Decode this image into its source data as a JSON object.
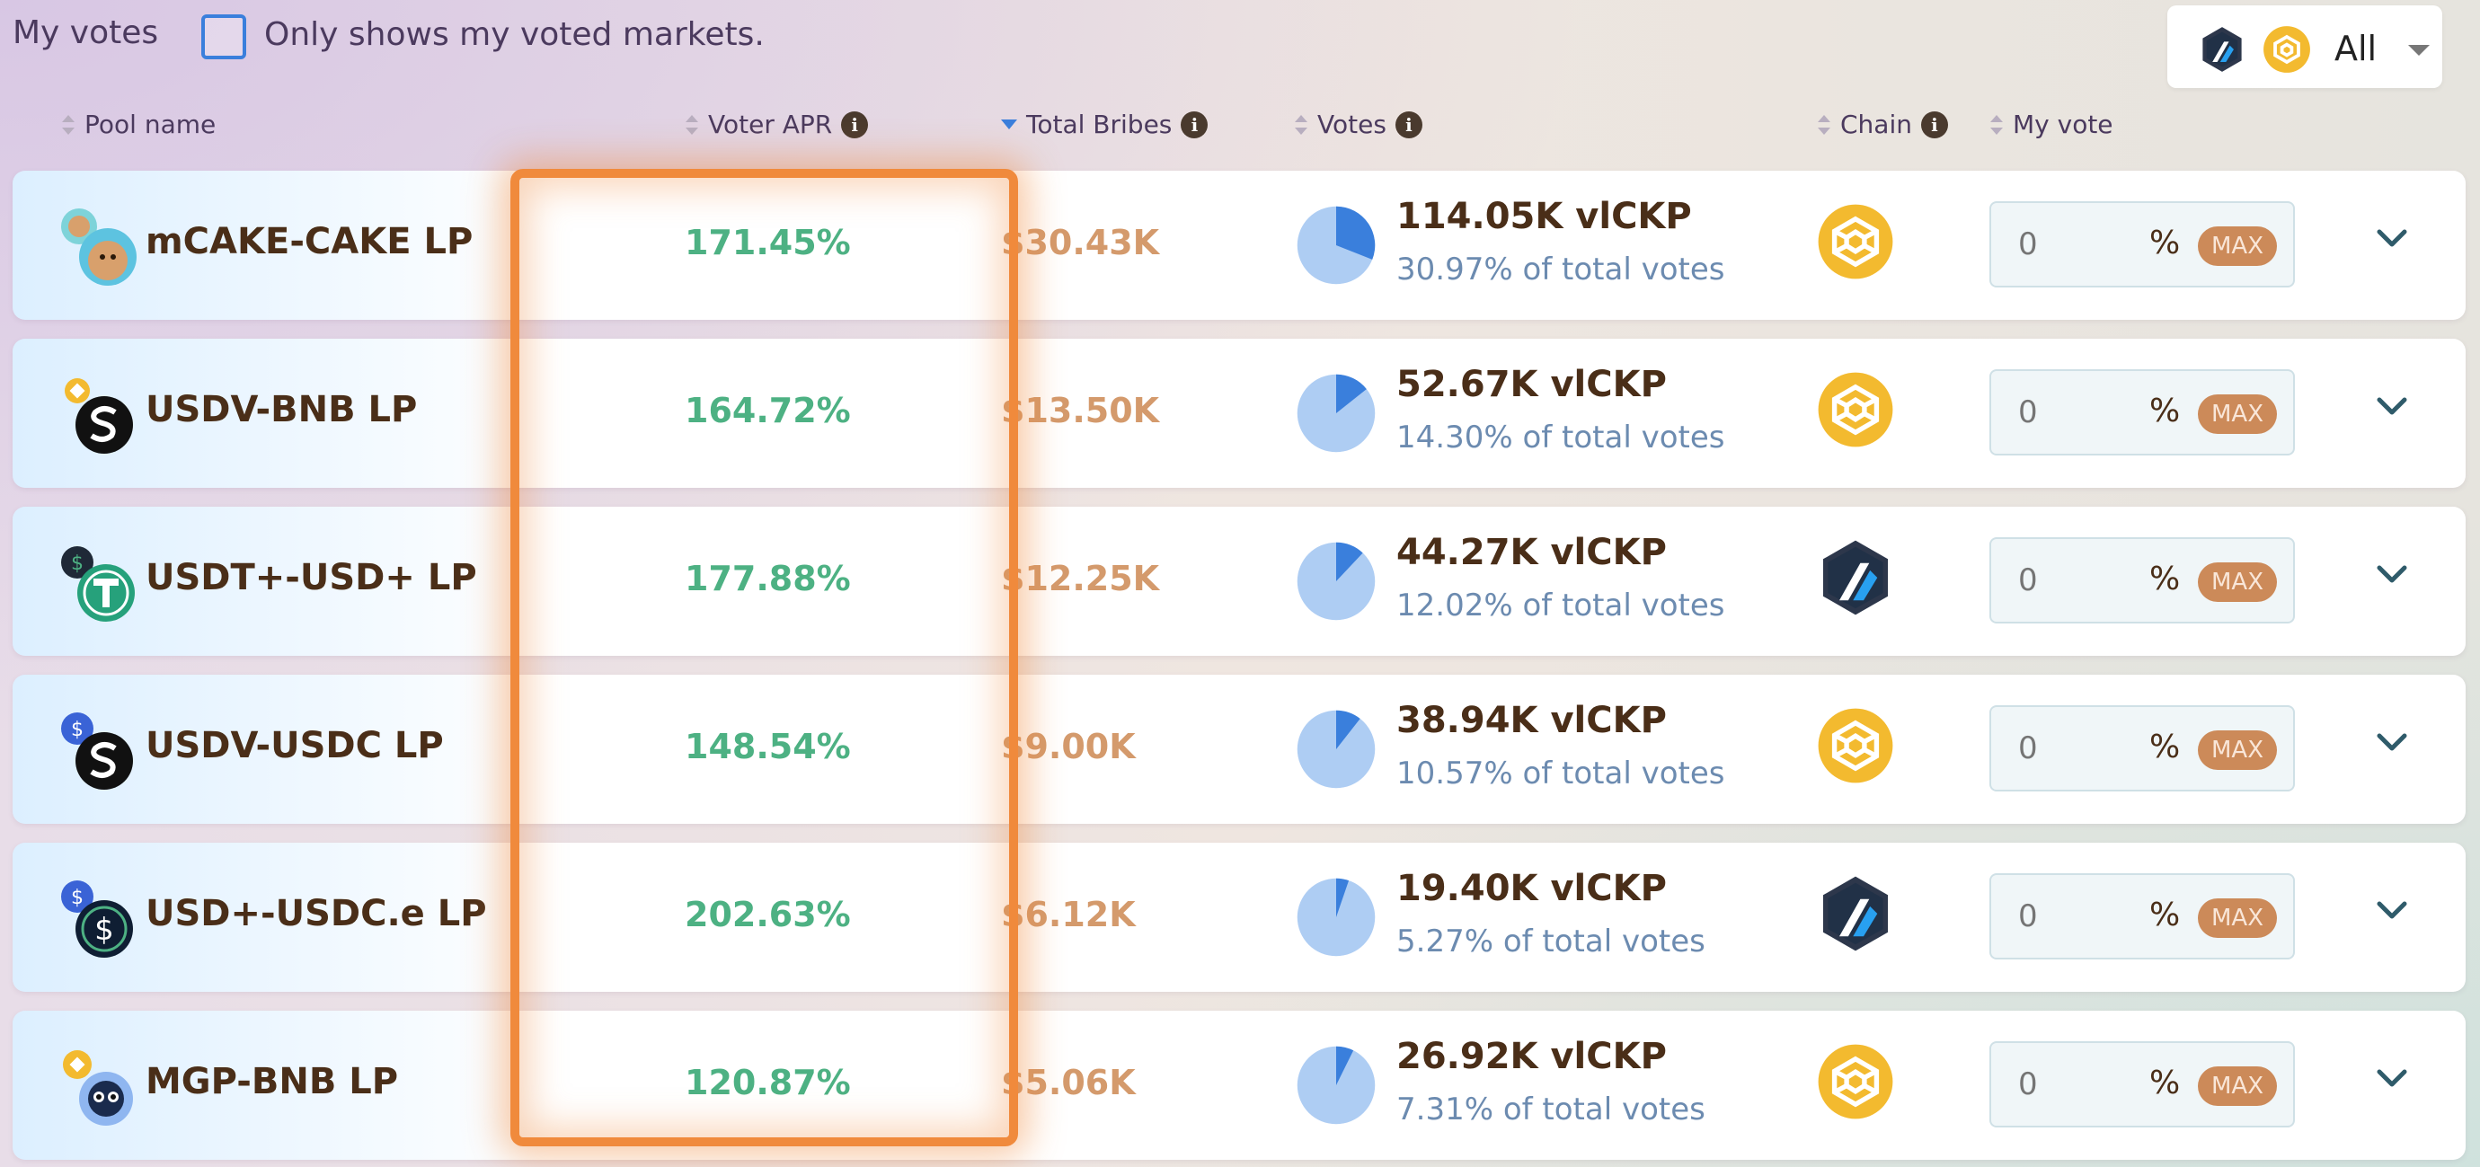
{
  "filters": {
    "title": "My votes",
    "checkbox_label": "Only shows my voted markets.",
    "chain_select_value": "All",
    "chain_select_icons": [
      "arbitrum-icon",
      "bnb-icon"
    ]
  },
  "columns": {
    "pool_name": "Pool name",
    "voter_apr": "Voter APR",
    "total_bribes": "Total Bribes",
    "votes": "Votes",
    "chain": "Chain",
    "my_vote": "My vote"
  },
  "sort": {
    "column": "total_bribes",
    "direction": "desc"
  },
  "rows": [
    {
      "pool": "mCAKE-CAKE LP",
      "apr": "171.45%",
      "bribes": "$30.43K",
      "votes": "114.05K vlCKP",
      "share": "30.97% of total votes",
      "share_value": 30.97,
      "chain": "bnb-icon",
      "my_vote": "0",
      "pct_sign": "%",
      "max": "MAX"
    },
    {
      "pool": "USDV-BNB LP",
      "apr": "164.72%",
      "bribes": "$13.50K",
      "votes": "52.67K vlCKP",
      "share": "14.30% of total votes",
      "share_value": 14.3,
      "chain": "bnb-icon",
      "my_vote": "0",
      "pct_sign": "%",
      "max": "MAX"
    },
    {
      "pool": "USDT+-USD+ LP",
      "apr": "177.88%",
      "bribes": "$12.25K",
      "votes": "44.27K vlCKP",
      "share": "12.02% of total votes",
      "share_value": 12.02,
      "chain": "arbitrum-icon",
      "my_vote": "0",
      "pct_sign": "%",
      "max": "MAX"
    },
    {
      "pool": "USDV-USDC LP",
      "apr": "148.54%",
      "bribes": "$9.00K",
      "votes": "38.94K vlCKP",
      "share": "10.57% of total votes",
      "share_value": 10.57,
      "chain": "bnb-icon",
      "my_vote": "0",
      "pct_sign": "%",
      "max": "MAX"
    },
    {
      "pool": "USD+-USDC.e LP",
      "apr": "202.63%",
      "bribes": "$6.12K",
      "votes": "19.40K vlCKP",
      "share": "5.27% of total votes",
      "share_value": 5.27,
      "chain": "arbitrum-icon",
      "my_vote": "0",
      "pct_sign": "%",
      "max": "MAX"
    },
    {
      "pool": "MGP-BNB LP",
      "apr": "120.87%",
      "bribes": "$5.06K",
      "votes": "26.92K vlCKP",
      "share": "7.31% of total votes",
      "share_value": 7.31,
      "chain": "bnb-icon",
      "my_vote": "0",
      "pct_sign": "%",
      "max": "MAX"
    }
  ],
  "colors": {
    "apr": "#4db183",
    "bribes": "#d49a6c",
    "pie_fill": "#aecdf3",
    "pie_slice": "#3a7fdc",
    "highlight": "#f08a3c",
    "max_button": "#cc8a59"
  }
}
